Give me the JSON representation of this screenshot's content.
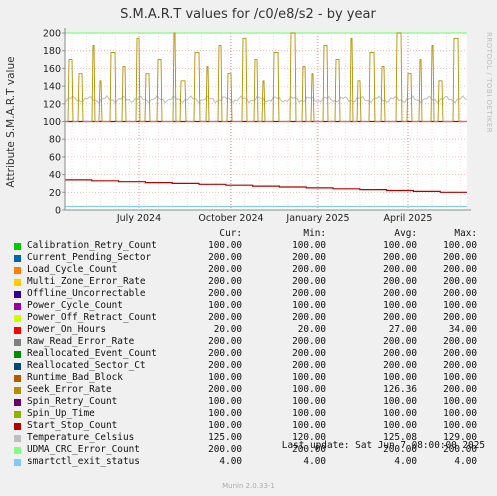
{
  "chart_data": {
    "type": "line",
    "title": "S.M.A.R.T values for /c0/e8/s2 - by year",
    "ylabel": "Attribute S.M.A.R.T value",
    "ylim": [
      0,
      200
    ],
    "yticks": [
      0,
      20,
      40,
      60,
      80,
      100,
      120,
      140,
      160,
      180,
      200
    ],
    "xticks": [
      "July 2024",
      "October 2024",
      "January 2025",
      "April 2025"
    ],
    "grid": true,
    "side_label": "RRDTOOL / TOBI OETIKER",
    "legend_headers": {
      "cur": "Cur:",
      "min": "Min:",
      "avg": "Avg:",
      "max": "Max:"
    },
    "series": [
      {
        "name": "Calibration_Retry_Count",
        "color": "#00cc00",
        "cur": "100.00",
        "min": "100.00",
        "avg": "100.00",
        "max": "100.00"
      },
      {
        "name": "Current_Pending_Sector",
        "color": "#0066b3",
        "cur": "200.00",
        "min": "200.00",
        "avg": "200.00",
        "max": "200.00"
      },
      {
        "name": "Load_Cycle_Count",
        "color": "#ff8000",
        "cur": "200.00",
        "min": "200.00",
        "avg": "200.00",
        "max": "200.00"
      },
      {
        "name": "Multi_Zone_Error_Rate",
        "color": "#ffcc00",
        "cur": "200.00",
        "min": "200.00",
        "avg": "200.00",
        "max": "200.00"
      },
      {
        "name": "Offline_Uncorrectable",
        "color": "#330099",
        "cur": "200.00",
        "min": "200.00",
        "avg": "200.00",
        "max": "200.00"
      },
      {
        "name": "Power_Cycle_Count",
        "color": "#990099",
        "cur": "100.00",
        "min": "100.00",
        "avg": "100.00",
        "max": "100.00"
      },
      {
        "name": "Power_Off_Retract_Count",
        "color": "#ccff00",
        "cur": "200.00",
        "min": "200.00",
        "avg": "200.00",
        "max": "200.00"
      },
      {
        "name": "Power_On_Hours",
        "color": "#ff0000",
        "cur": "20.00",
        "min": "20.00",
        "avg": "27.00",
        "max": "34.00"
      },
      {
        "name": "Raw_Read_Error_Rate",
        "color": "#808080",
        "cur": "200.00",
        "min": "200.00",
        "avg": "200.00",
        "max": "200.00"
      },
      {
        "name": "Reallocated_Event_Count",
        "color": "#008f00",
        "cur": "200.00",
        "min": "200.00",
        "avg": "200.00",
        "max": "200.00"
      },
      {
        "name": "Reallocated_Sector_Ct",
        "color": "#00487d",
        "cur": "200.00",
        "min": "200.00",
        "avg": "200.00",
        "max": "200.00"
      },
      {
        "name": "Runtime_Bad_Block",
        "color": "#b35a00",
        "cur": "100.00",
        "min": "100.00",
        "avg": "100.00",
        "max": "100.00"
      },
      {
        "name": "Seek_Error_Rate",
        "color": "#b38f00",
        "cur": "200.00",
        "min": "100.00",
        "avg": "126.36",
        "max": "200.00"
      },
      {
        "name": "Spin_Retry_Count",
        "color": "#6b006b",
        "cur": "100.00",
        "min": "100.00",
        "avg": "100.00",
        "max": "100.00"
      },
      {
        "name": "Spin_Up_Time",
        "color": "#8fb300",
        "cur": "100.00",
        "min": "100.00",
        "avg": "100.00",
        "max": "100.00"
      },
      {
        "name": "Start_Stop_Count",
        "color": "#b30000",
        "cur": "100.00",
        "min": "100.00",
        "avg": "100.00",
        "max": "100.00"
      },
      {
        "name": "Temperature_Celsius",
        "color": "#bebebe",
        "cur": "125.00",
        "min": "120.00",
        "avg": "125.08",
        "max": "129.00"
      },
      {
        "name": "UDMA_CRC_Error_Count",
        "color": "#80ff80",
        "cur": "200.00",
        "min": "200.00",
        "avg": "200.00",
        "max": "200.00"
      },
      {
        "name": "smartctl_exit_status",
        "color": "#80c9ff",
        "cur": "4.00",
        "min": "4.00",
        "avg": "4.00",
        "max": "4.00"
      }
    ],
    "last_update": "Last update:  Sat Jun  7 08:00:00 2025",
    "footer": "Munin 2.0.33-1"
  }
}
